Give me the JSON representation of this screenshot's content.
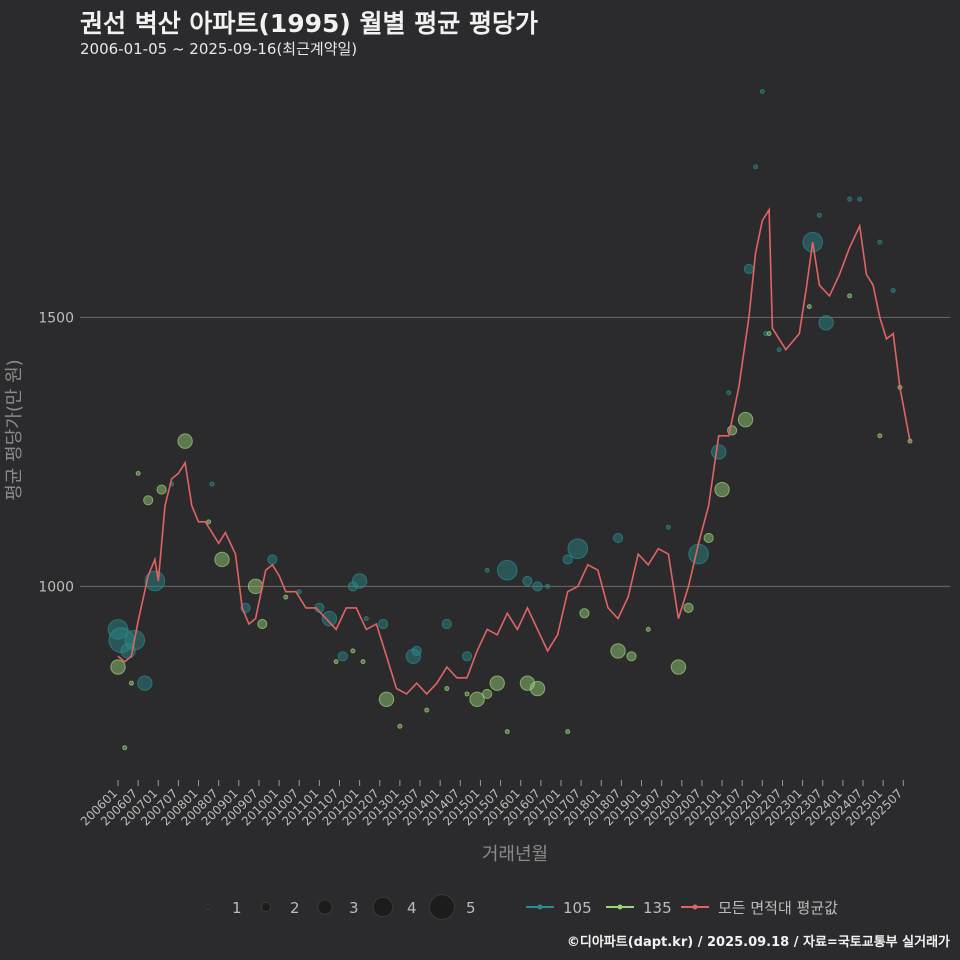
{
  "title": "권선 벽산 아파트(1995) 월별 평균 평당가",
  "subtitle": "2006-01-05 ~ 2025-09-16(최근계약일)",
  "credit": "©디아파트(dapt.kr) / 2025.09.18 / 자료=국토교통부 실거래가",
  "colors": {
    "background": "#2b2b2d",
    "series_105": "#2a8c8c",
    "series_135": "#9bd47a",
    "average": "#e06464",
    "grid": "#6b6b6b"
  },
  "chart_data": {
    "type": "line",
    "xlabel": "거래년월",
    "ylabel": "평균 평당가(만 원)",
    "x_ticks": [
      "200601",
      "200607",
      "200701",
      "200707",
      "200801",
      "200807",
      "200901",
      "200907",
      "201001",
      "201007",
      "201101",
      "201107",
      "201201",
      "201207",
      "201301",
      "201307",
      "201401",
      "201407",
      "201501",
      "201507",
      "201601",
      "201607",
      "201701",
      "201707",
      "201801",
      "201807",
      "201901",
      "201907",
      "202001",
      "202007",
      "202101",
      "202107",
      "202201",
      "202207",
      "202301",
      "202307",
      "202401",
      "202407",
      "202501",
      "202507"
    ],
    "y_ticks": [
      1000,
      1500
    ],
    "ylim": [
      640,
      1960
    ],
    "grid": true,
    "legend": {
      "position": "bottom",
      "size_title": "",
      "size_entries": [
        "1",
        "2",
        "3",
        "4",
        "5"
      ],
      "color_entries": [
        "105",
        "135",
        "모든 면적대 평균값"
      ]
    },
    "average_line": [
      [
        "2006-01",
        870
      ],
      [
        "2006-03",
        860
      ],
      [
        "2006-05",
        870
      ],
      [
        "2006-07",
        935
      ],
      [
        "2006-10",
        1020
      ],
      [
        "2006-12",
        1050
      ],
      [
        "2007-01",
        1010
      ],
      [
        "2007-03",
        1150
      ],
      [
        "2007-05",
        1200
      ],
      [
        "2007-07",
        1210
      ],
      [
        "2007-09",
        1230
      ],
      [
        "2007-11",
        1150
      ],
      [
        "2008-01",
        1120
      ],
      [
        "2008-03",
        1120
      ],
      [
        "2008-05",
        1100
      ],
      [
        "2008-07",
        1080
      ],
      [
        "2008-09",
        1100
      ],
      [
        "2008-12",
        1060
      ],
      [
        "2009-02",
        960
      ],
      [
        "2009-04",
        930
      ],
      [
        "2009-06",
        940
      ],
      [
        "2009-09",
        1030
      ],
      [
        "2009-11",
        1040
      ],
      [
        "2010-01",
        1020
      ],
      [
        "2010-03",
        990
      ],
      [
        "2010-06",
        990
      ],
      [
        "2010-09",
        960
      ],
      [
        "2010-12",
        960
      ],
      [
        "2011-03",
        940
      ],
      [
        "2011-06",
        920
      ],
      [
        "2011-09",
        960
      ],
      [
        "2011-12",
        960
      ],
      [
        "2012-03",
        920
      ],
      [
        "2012-06",
        930
      ],
      [
        "2012-09",
        870
      ],
      [
        "2012-12",
        810
      ],
      [
        "2013-03",
        800
      ],
      [
        "2013-06",
        820
      ],
      [
        "2013-09",
        800
      ],
      [
        "2013-12",
        820
      ],
      [
        "2014-03",
        850
      ],
      [
        "2014-06",
        830
      ],
      [
        "2014-09",
        830
      ],
      [
        "2014-12",
        880
      ],
      [
        "2015-03",
        920
      ],
      [
        "2015-06",
        910
      ],
      [
        "2015-09",
        950
      ],
      [
        "2015-12",
        920
      ],
      [
        "2016-03",
        960
      ],
      [
        "2016-06",
        920
      ],
      [
        "2016-09",
        880
      ],
      [
        "2016-12",
        910
      ],
      [
        "2017-03",
        990
      ],
      [
        "2017-06",
        1000
      ],
      [
        "2017-09",
        1040
      ],
      [
        "2017-12",
        1030
      ],
      [
        "2018-03",
        960
      ],
      [
        "2018-06",
        940
      ],
      [
        "2018-09",
        980
      ],
      [
        "2018-12",
        1060
      ],
      [
        "2019-03",
        1040
      ],
      [
        "2019-06",
        1070
      ],
      [
        "2019-09",
        1060
      ],
      [
        "2019-12",
        940
      ],
      [
        "2020-03",
        1000
      ],
      [
        "2020-06",
        1080
      ],
      [
        "2020-09",
        1150
      ],
      [
        "2020-12",
        1280
      ],
      [
        "2021-03",
        1280
      ],
      [
        "2021-06",
        1370
      ],
      [
        "2021-09",
        1500
      ],
      [
        "2021-11",
        1620
      ],
      [
        "2022-01",
        1680
      ],
      [
        "2022-03",
        1700
      ],
      [
        "2022-04",
        1480
      ],
      [
        "2022-06",
        1460
      ],
      [
        "2022-08",
        1440
      ],
      [
        "2022-12",
        1470
      ],
      [
        "2023-02",
        1550
      ],
      [
        "2023-04",
        1640
      ],
      [
        "2023-06",
        1560
      ],
      [
        "2023-09",
        1540
      ],
      [
        "2023-12",
        1580
      ],
      [
        "2024-03",
        1630
      ],
      [
        "2024-06",
        1670
      ],
      [
        "2024-08",
        1580
      ],
      [
        "2024-10",
        1560
      ],
      [
        "2024-12",
        1500
      ],
      [
        "2025-02",
        1460
      ],
      [
        "2025-04",
        1470
      ],
      [
        "2025-06",
        1370
      ],
      [
        "2025-09",
        1270
      ]
    ],
    "series": [
      {
        "name": "105",
        "points": [
          [
            "2006-01",
            920,
            4
          ],
          [
            "2006-02",
            900,
            5
          ],
          [
            "2006-04",
            880,
            3
          ],
          [
            "2006-06",
            900,
            4
          ],
          [
            "2006-09",
            820,
            3
          ],
          [
            "2006-12",
            1010,
            4
          ],
          [
            "2007-05",
            1190,
            1
          ],
          [
            "2008-05",
            1190,
            1
          ],
          [
            "2009-03",
            960,
            2
          ],
          [
            "2009-11",
            1050,
            2
          ],
          [
            "2010-07",
            990,
            1
          ],
          [
            "2011-01",
            960,
            2
          ],
          [
            "2011-04",
            940,
            3
          ],
          [
            "2011-08",
            870,
            2
          ],
          [
            "2011-11",
            1000,
            2
          ],
          [
            "2012-01",
            1010,
            3
          ],
          [
            "2012-03",
            940,
            1
          ],
          [
            "2012-08",
            930,
            2
          ],
          [
            "2013-05",
            870,
            3
          ],
          [
            "2013-06",
            880,
            2
          ],
          [
            "2014-03",
            930,
            2
          ],
          [
            "2014-09",
            870,
            2
          ],
          [
            "2015-03",
            1030,
            1
          ],
          [
            "2015-09",
            1030,
            4
          ],
          [
            "2016-03",
            1010,
            2
          ],
          [
            "2016-06",
            1000,
            2
          ],
          [
            "2016-09",
            1000,
            1
          ],
          [
            "2017-03",
            1050,
            2
          ],
          [
            "2017-06",
            1070,
            4
          ],
          [
            "2018-06",
            1090,
            2
          ],
          [
            "2019-09",
            1110,
            1
          ],
          [
            "2020-06",
            1060,
            4
          ],
          [
            "2020-12",
            1250,
            3
          ],
          [
            "2021-03",
            1360,
            1
          ],
          [
            "2021-09",
            1590,
            2
          ],
          [
            "2022-02",
            1470,
            1
          ],
          [
            "2022-06",
            1440,
            1
          ],
          [
            "2023-04",
            1640,
            4
          ],
          [
            "2023-08",
            1490,
            3
          ],
          [
            "2024-03",
            1720,
            1
          ],
          [
            "2024-06",
            1720,
            1
          ],
          [
            "2024-12",
            1640,
            1
          ],
          [
            "2025-04",
            1550,
            1
          ],
          [
            "2022-01",
            1920,
            1
          ],
          [
            "2021-11",
            1780,
            1
          ],
          [
            "2023-06",
            1690,
            1
          ]
        ]
      },
      {
        "name": "135",
        "points": [
          [
            "2006-01",
            850,
            3
          ],
          [
            "2006-03",
            700,
            1
          ],
          [
            "2006-05",
            820,
            1
          ],
          [
            "2006-07",
            1210,
            1
          ],
          [
            "2006-10",
            1160,
            2
          ],
          [
            "2007-02",
            1180,
            2
          ],
          [
            "2007-09",
            1270,
            3
          ],
          [
            "2008-04",
            1120,
            1
          ],
          [
            "2008-08",
            1050,
            3
          ],
          [
            "2009-06",
            1000,
            3
          ],
          [
            "2009-08",
            930,
            2
          ],
          [
            "2010-03",
            980,
            1
          ],
          [
            "2011-06",
            860,
            1
          ],
          [
            "2011-11",
            880,
            1
          ],
          [
            "2012-02",
            860,
            1
          ],
          [
            "2012-09",
            790,
            3
          ],
          [
            "2013-01",
            740,
            1
          ],
          [
            "2013-09",
            770,
            1
          ],
          [
            "2014-03",
            810,
            1
          ],
          [
            "2014-09",
            800,
            1
          ],
          [
            "2014-12",
            790,
            3
          ],
          [
            "2015-03",
            800,
            2
          ],
          [
            "2015-06",
            820,
            3
          ],
          [
            "2015-09",
            730,
            1
          ],
          [
            "2016-03",
            820,
            3
          ],
          [
            "2016-06",
            810,
            3
          ],
          [
            "2017-03",
            730,
            1
          ],
          [
            "2017-08",
            950,
            2
          ],
          [
            "2018-06",
            880,
            3
          ],
          [
            "2018-10",
            870,
            2
          ],
          [
            "2019-03",
            920,
            1
          ],
          [
            "2019-12",
            850,
            3
          ],
          [
            "2020-03",
            960,
            2
          ],
          [
            "2020-09",
            1090,
            2
          ],
          [
            "2021-01",
            1180,
            3
          ],
          [
            "2021-04",
            1290,
            2
          ],
          [
            "2021-08",
            1310,
            3
          ],
          [
            "2022-03",
            1470,
            1
          ],
          [
            "2023-03",
            1520,
            1
          ],
          [
            "2024-03",
            1540,
            1
          ],
          [
            "2024-12",
            1280,
            1
          ],
          [
            "2025-06",
            1370,
            1
          ],
          [
            "2025-09",
            1270,
            1
          ]
        ]
      }
    ]
  }
}
